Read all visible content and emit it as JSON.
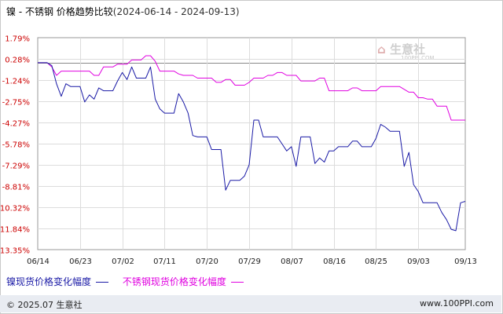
{
  "title": "镍 - 不锈钢 价格趋势比较",
  "date_range": "(2024-06-14 - 2024-09-13)",
  "watermark": {
    "name": "生意社",
    "url": "100PPI.COM"
  },
  "footer": {
    "copyright": "© 2025.07 生意社",
    "site": "www.100PPI.com"
  },
  "chart_data": {
    "type": "line",
    "title": "镍 - 不锈钢 价格趋势比较",
    "x_tick_labels": [
      "06/14",
      "06/23",
      "07/02",
      "07/11",
      "07/20",
      "07/29",
      "08/07",
      "08/16",
      "08/25",
      "09/03",
      "09/13"
    ],
    "y_tick_labels": [
      "1.79%",
      "0.28%",
      "-1.24%",
      "-2.75%",
      "-4.27%",
      "-5.78%",
      "-7.29%",
      "-8.81%",
      "-10.32%",
      "-11.84%",
      "-13.35%"
    ],
    "y_ticks": [
      1.79,
      0.28,
      -1.24,
      -2.75,
      -4.27,
      -5.78,
      -7.29,
      -8.81,
      -10.32,
      -11.84,
      -13.35
    ],
    "ylim": [
      -13.35,
      1.79
    ],
    "zero_line": 0,
    "grid": true,
    "legend_position": "bottom-left",
    "colors": {
      "nickel": "#1a1aa6",
      "stainless": "#e000e0",
      "y_axis_labels": "#cc0000"
    },
    "x": [
      "06/14",
      "06/15",
      "06/16",
      "06/17",
      "06/18",
      "06/19",
      "06/20",
      "06/21",
      "06/22",
      "06/23",
      "06/24",
      "06/25",
      "06/26",
      "06/27",
      "06/28",
      "06/29",
      "06/30",
      "07/01",
      "07/02",
      "07/03",
      "07/04",
      "07/05",
      "07/06",
      "07/07",
      "07/08",
      "07/09",
      "07/10",
      "07/11",
      "07/12",
      "07/13",
      "07/14",
      "07/15",
      "07/16",
      "07/17",
      "07/18",
      "07/19",
      "07/20",
      "07/21",
      "07/22",
      "07/23",
      "07/24",
      "07/25",
      "07/26",
      "07/27",
      "07/28",
      "07/29",
      "07/30",
      "07/31",
      "08/01",
      "08/02",
      "08/03",
      "08/04",
      "08/05",
      "08/06",
      "08/07",
      "08/08",
      "08/09",
      "08/10",
      "08/11",
      "08/12",
      "08/13",
      "08/14",
      "08/15",
      "08/16",
      "08/17",
      "08/18",
      "08/19",
      "08/20",
      "08/21",
      "08/22",
      "08/23",
      "08/24",
      "08/25",
      "08/26",
      "08/27",
      "08/28",
      "08/29",
      "08/30",
      "08/31",
      "09/01",
      "09/02",
      "09/03",
      "09/04",
      "09/05",
      "09/06",
      "09/07",
      "09/08",
      "09/09",
      "09/10",
      "09/11",
      "09/12",
      "09/13"
    ],
    "series": [
      {
        "name": "镍现货价格变化幅度",
        "color": "#1a1aa6",
        "values": [
          0,
          0,
          0,
          -0.2,
          -1.5,
          -2.4,
          -1.5,
          -1.7,
          -1.7,
          -1.7,
          -2.8,
          -2.3,
          -2.6,
          -1.8,
          -2.0,
          -2.0,
          -2.0,
          -1.3,
          -0.7,
          -1.2,
          -0.3,
          -1.1,
          -1.1,
          -1.1,
          -0.3,
          -2.6,
          -3.3,
          -3.6,
          -3.6,
          -3.6,
          -2.2,
          -2.8,
          -3.6,
          -5.2,
          -5.3,
          -5.3,
          -5.3,
          -6.2,
          -6.2,
          -6.2,
          -9.1,
          -8.4,
          -8.4,
          -8.4,
          -8.1,
          -7.3,
          -4.1,
          -4.1,
          -5.3,
          -5.3,
          -5.3,
          -5.3,
          -5.8,
          -6.3,
          -6.0,
          -7.4,
          -5.3,
          -5.3,
          -5.3,
          -7.2,
          -6.8,
          -7.1,
          -6.3,
          -6.3,
          -6.0,
          -6.0,
          -6.0,
          -5.6,
          -5.6,
          -6.0,
          -6.0,
          -6.0,
          -5.4,
          -4.4,
          -4.6,
          -4.9,
          -4.9,
          -4.9,
          -7.4,
          -6.4,
          -8.7,
          -9.2,
          -10.0,
          -10.0,
          -10.0,
          -10.0,
          -10.7,
          -11.2,
          -11.9,
          -12.0,
          -10.0,
          -9.9
        ]
      },
      {
        "name": "不锈钢现货价格变化幅度",
        "color": "#e000e0",
        "values": [
          0,
          0,
          0,
          -0.3,
          -0.9,
          -0.6,
          -0.6,
          -0.6,
          -0.6,
          -0.6,
          -0.6,
          -0.6,
          -0.9,
          -0.9,
          -0.3,
          -0.3,
          -0.3,
          -0.1,
          -0.1,
          -0.1,
          0.2,
          0.2,
          0.2,
          0.5,
          0.5,
          0.1,
          -0.6,
          -0.6,
          -0.6,
          -0.6,
          -0.8,
          -0.9,
          -0.9,
          -0.9,
          -1.1,
          -1.1,
          -1.1,
          -1.1,
          -1.4,
          -1.4,
          -1.2,
          -1.2,
          -1.6,
          -1.6,
          -1.6,
          -1.4,
          -1.1,
          -1.1,
          -1.1,
          -0.9,
          -0.9,
          -0.7,
          -0.7,
          -0.9,
          -0.9,
          -0.9,
          -1.3,
          -1.3,
          -1.3,
          -1.3,
          -1.1,
          -1.1,
          -2.0,
          -2.0,
          -2.0,
          -2.0,
          -2.0,
          -1.8,
          -1.8,
          -2.0,
          -2.0,
          -2.0,
          -2.0,
          -1.7,
          -1.7,
          -1.7,
          -1.7,
          -1.7,
          -1.9,
          -2.1,
          -2.1,
          -2.5,
          -2.5,
          -2.6,
          -2.6,
          -3.1,
          -3.1,
          -3.1,
          -4.1,
          -4.1,
          -4.1,
          -4.1
        ]
      }
    ]
  }
}
